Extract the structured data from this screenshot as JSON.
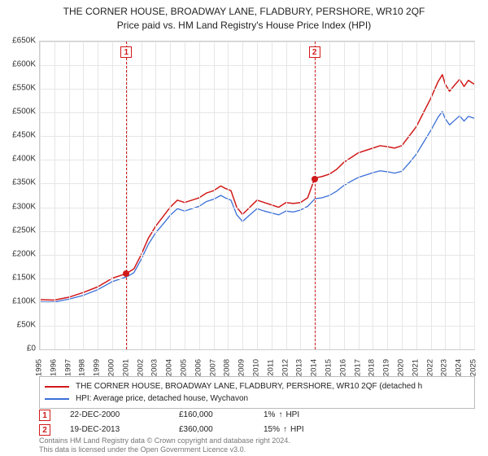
{
  "title_line1": "THE CORNER HOUSE, BROADWAY LANE, FLADBURY, PERSHORE, WR10 2QF",
  "title_line2": "Price paid vs. HM Land Registry's House Price Index (HPI)",
  "chart": {
    "type": "line",
    "x_min_year": 1995,
    "x_max_year": 2025,
    "y_min": 0,
    "y_max": 650000,
    "y_tick_step": 50000,
    "y_tick_labels": [
      "£0",
      "£50K",
      "£100K",
      "£150K",
      "£200K",
      "£250K",
      "£300K",
      "£350K",
      "£400K",
      "£450K",
      "£500K",
      "£550K",
      "£600K",
      "£650K"
    ],
    "x_ticks": [
      1995,
      1996,
      1997,
      1998,
      1999,
      2000,
      2001,
      2002,
      2003,
      2004,
      2005,
      2006,
      2007,
      2008,
      2009,
      2010,
      2011,
      2012,
      2013,
      2014,
      2015,
      2016,
      2017,
      2018,
      2019,
      2020,
      2021,
      2022,
      2023,
      2024,
      2025
    ],
    "grid_color": "#e6e6e6",
    "border_color": "#cccccc",
    "background_color": "#ffffff",
    "series": [
      {
        "id": "subject",
        "label": "THE CORNER HOUSE, BROADWAY LANE, FLADBURY, PERSHORE, WR10 2QF (detached h",
        "color": "#d11919",
        "line_width": 1.5,
        "points": [
          [
            1995.0,
            105000
          ],
          [
            1996.0,
            104000
          ],
          [
            1997.0,
            110000
          ],
          [
            1998.0,
            120000
          ],
          [
            1999.0,
            132000
          ],
          [
            2000.0,
            150000
          ],
          [
            2000.97,
            160000
          ],
          [
            2001.5,
            170000
          ],
          [
            2002.0,
            200000
          ],
          [
            2002.5,
            235000
          ],
          [
            2003.0,
            260000
          ],
          [
            2003.5,
            280000
          ],
          [
            2004.0,
            300000
          ],
          [
            2004.5,
            315000
          ],
          [
            2005.0,
            310000
          ],
          [
            2005.5,
            315000
          ],
          [
            2006.0,
            320000
          ],
          [
            2006.5,
            330000
          ],
          [
            2007.0,
            335000
          ],
          [
            2007.5,
            345000
          ],
          [
            2007.8,
            340000
          ],
          [
            2008.2,
            335000
          ],
          [
            2008.6,
            300000
          ],
          [
            2009.0,
            285000
          ],
          [
            2009.5,
            300000
          ],
          [
            2010.0,
            315000
          ],
          [
            2010.5,
            310000
          ],
          [
            2011.0,
            305000
          ],
          [
            2011.5,
            300000
          ],
          [
            2012.0,
            310000
          ],
          [
            2012.5,
            308000
          ],
          [
            2013.0,
            310000
          ],
          [
            2013.5,
            320000
          ],
          [
            2013.97,
            360000
          ],
          [
            2014.2,
            363000
          ],
          [
            2014.5,
            365000
          ],
          [
            2015.0,
            370000
          ],
          [
            2015.5,
            380000
          ],
          [
            2016.0,
            395000
          ],
          [
            2016.5,
            405000
          ],
          [
            2017.0,
            415000
          ],
          [
            2017.5,
            420000
          ],
          [
            2018.0,
            425000
          ],
          [
            2018.5,
            430000
          ],
          [
            2019.0,
            428000
          ],
          [
            2019.5,
            425000
          ],
          [
            2020.0,
            430000
          ],
          [
            2020.5,
            450000
          ],
          [
            2021.0,
            470000
          ],
          [
            2021.5,
            500000
          ],
          [
            2022.0,
            530000
          ],
          [
            2022.5,
            565000
          ],
          [
            2022.8,
            580000
          ],
          [
            2023.0,
            560000
          ],
          [
            2023.3,
            545000
          ],
          [
            2023.7,
            560000
          ],
          [
            2024.0,
            570000
          ],
          [
            2024.3,
            555000
          ],
          [
            2024.6,
            568000
          ],
          [
            2025.0,
            560000
          ]
        ]
      },
      {
        "id": "hpi",
        "label": "HPI: Average price, detached house, Wychavon",
        "color": "#3b6fd6",
        "line_width": 1.3,
        "points": [
          [
            1995.0,
            100000
          ],
          [
            1996.0,
            100000
          ],
          [
            1997.0,
            106000
          ],
          [
            1998.0,
            114000
          ],
          [
            1999.0,
            126000
          ],
          [
            2000.0,
            143000
          ],
          [
            2001.0,
            153000
          ],
          [
            2001.5,
            162000
          ],
          [
            2002.0,
            190000
          ],
          [
            2002.5,
            222000
          ],
          [
            2003.0,
            246000
          ],
          [
            2003.5,
            264000
          ],
          [
            2004.0,
            283000
          ],
          [
            2004.5,
            297000
          ],
          [
            2005.0,
            292000
          ],
          [
            2005.5,
            297000
          ],
          [
            2006.0,
            302000
          ],
          [
            2006.5,
            312000
          ],
          [
            2007.0,
            317000
          ],
          [
            2007.5,
            325000
          ],
          [
            2007.8,
            320000
          ],
          [
            2008.2,
            315000
          ],
          [
            2008.6,
            284000
          ],
          [
            2009.0,
            270000
          ],
          [
            2009.5,
            284000
          ],
          [
            2010.0,
            297000
          ],
          [
            2010.5,
            292000
          ],
          [
            2011.0,
            288000
          ],
          [
            2011.5,
            284000
          ],
          [
            2012.0,
            292000
          ],
          [
            2012.5,
            290000
          ],
          [
            2013.0,
            294000
          ],
          [
            2013.5,
            302000
          ],
          [
            2014.0,
            318000
          ],
          [
            2014.5,
            320000
          ],
          [
            2015.0,
            325000
          ],
          [
            2015.5,
            334000
          ],
          [
            2016.0,
            346000
          ],
          [
            2016.5,
            355000
          ],
          [
            2017.0,
            363000
          ],
          [
            2017.5,
            368000
          ],
          [
            2018.0,
            373000
          ],
          [
            2018.5,
            377000
          ],
          [
            2019.0,
            375000
          ],
          [
            2019.5,
            372000
          ],
          [
            2020.0,
            376000
          ],
          [
            2020.5,
            393000
          ],
          [
            2021.0,
            412000
          ],
          [
            2021.5,
            437000
          ],
          [
            2022.0,
            462000
          ],
          [
            2022.5,
            490000
          ],
          [
            2022.8,
            502000
          ],
          [
            2023.0,
            487000
          ],
          [
            2023.3,
            474000
          ],
          [
            2023.7,
            485000
          ],
          [
            2024.0,
            493000
          ],
          [
            2024.3,
            482000
          ],
          [
            2024.6,
            492000
          ],
          [
            2025.0,
            488000
          ]
        ]
      }
    ],
    "markers": [
      {
        "n": "1",
        "year": 2000.97,
        "price": 160000,
        "color": "#d11919"
      },
      {
        "n": "2",
        "year": 2013.97,
        "price": 360000,
        "color": "#d11919"
      }
    ]
  },
  "legend": {
    "items": [
      {
        "color": "#d11919",
        "label": "THE CORNER HOUSE, BROADWAY LANE, FLADBURY, PERSHORE, WR10 2QF (detached h"
      },
      {
        "color": "#3b6fd6",
        "label": "HPI: Average price, detached house, Wychavon"
      }
    ]
  },
  "transactions": [
    {
      "n": "1",
      "date": "22-DEC-2000",
      "price": "£160,000",
      "hpi_pct": "1%",
      "hpi_dir": "up",
      "hpi_label": "HPI",
      "color": "#d11919"
    },
    {
      "n": "2",
      "date": "19-DEC-2013",
      "price": "£360,000",
      "hpi_pct": "15%",
      "hpi_dir": "up",
      "hpi_label": "HPI",
      "color": "#d11919"
    }
  ],
  "attribution": "Contains HM Land Registry data © Crown copyright and database right 2024.\nThis data is licensed under the Open Government Licence v3.0."
}
